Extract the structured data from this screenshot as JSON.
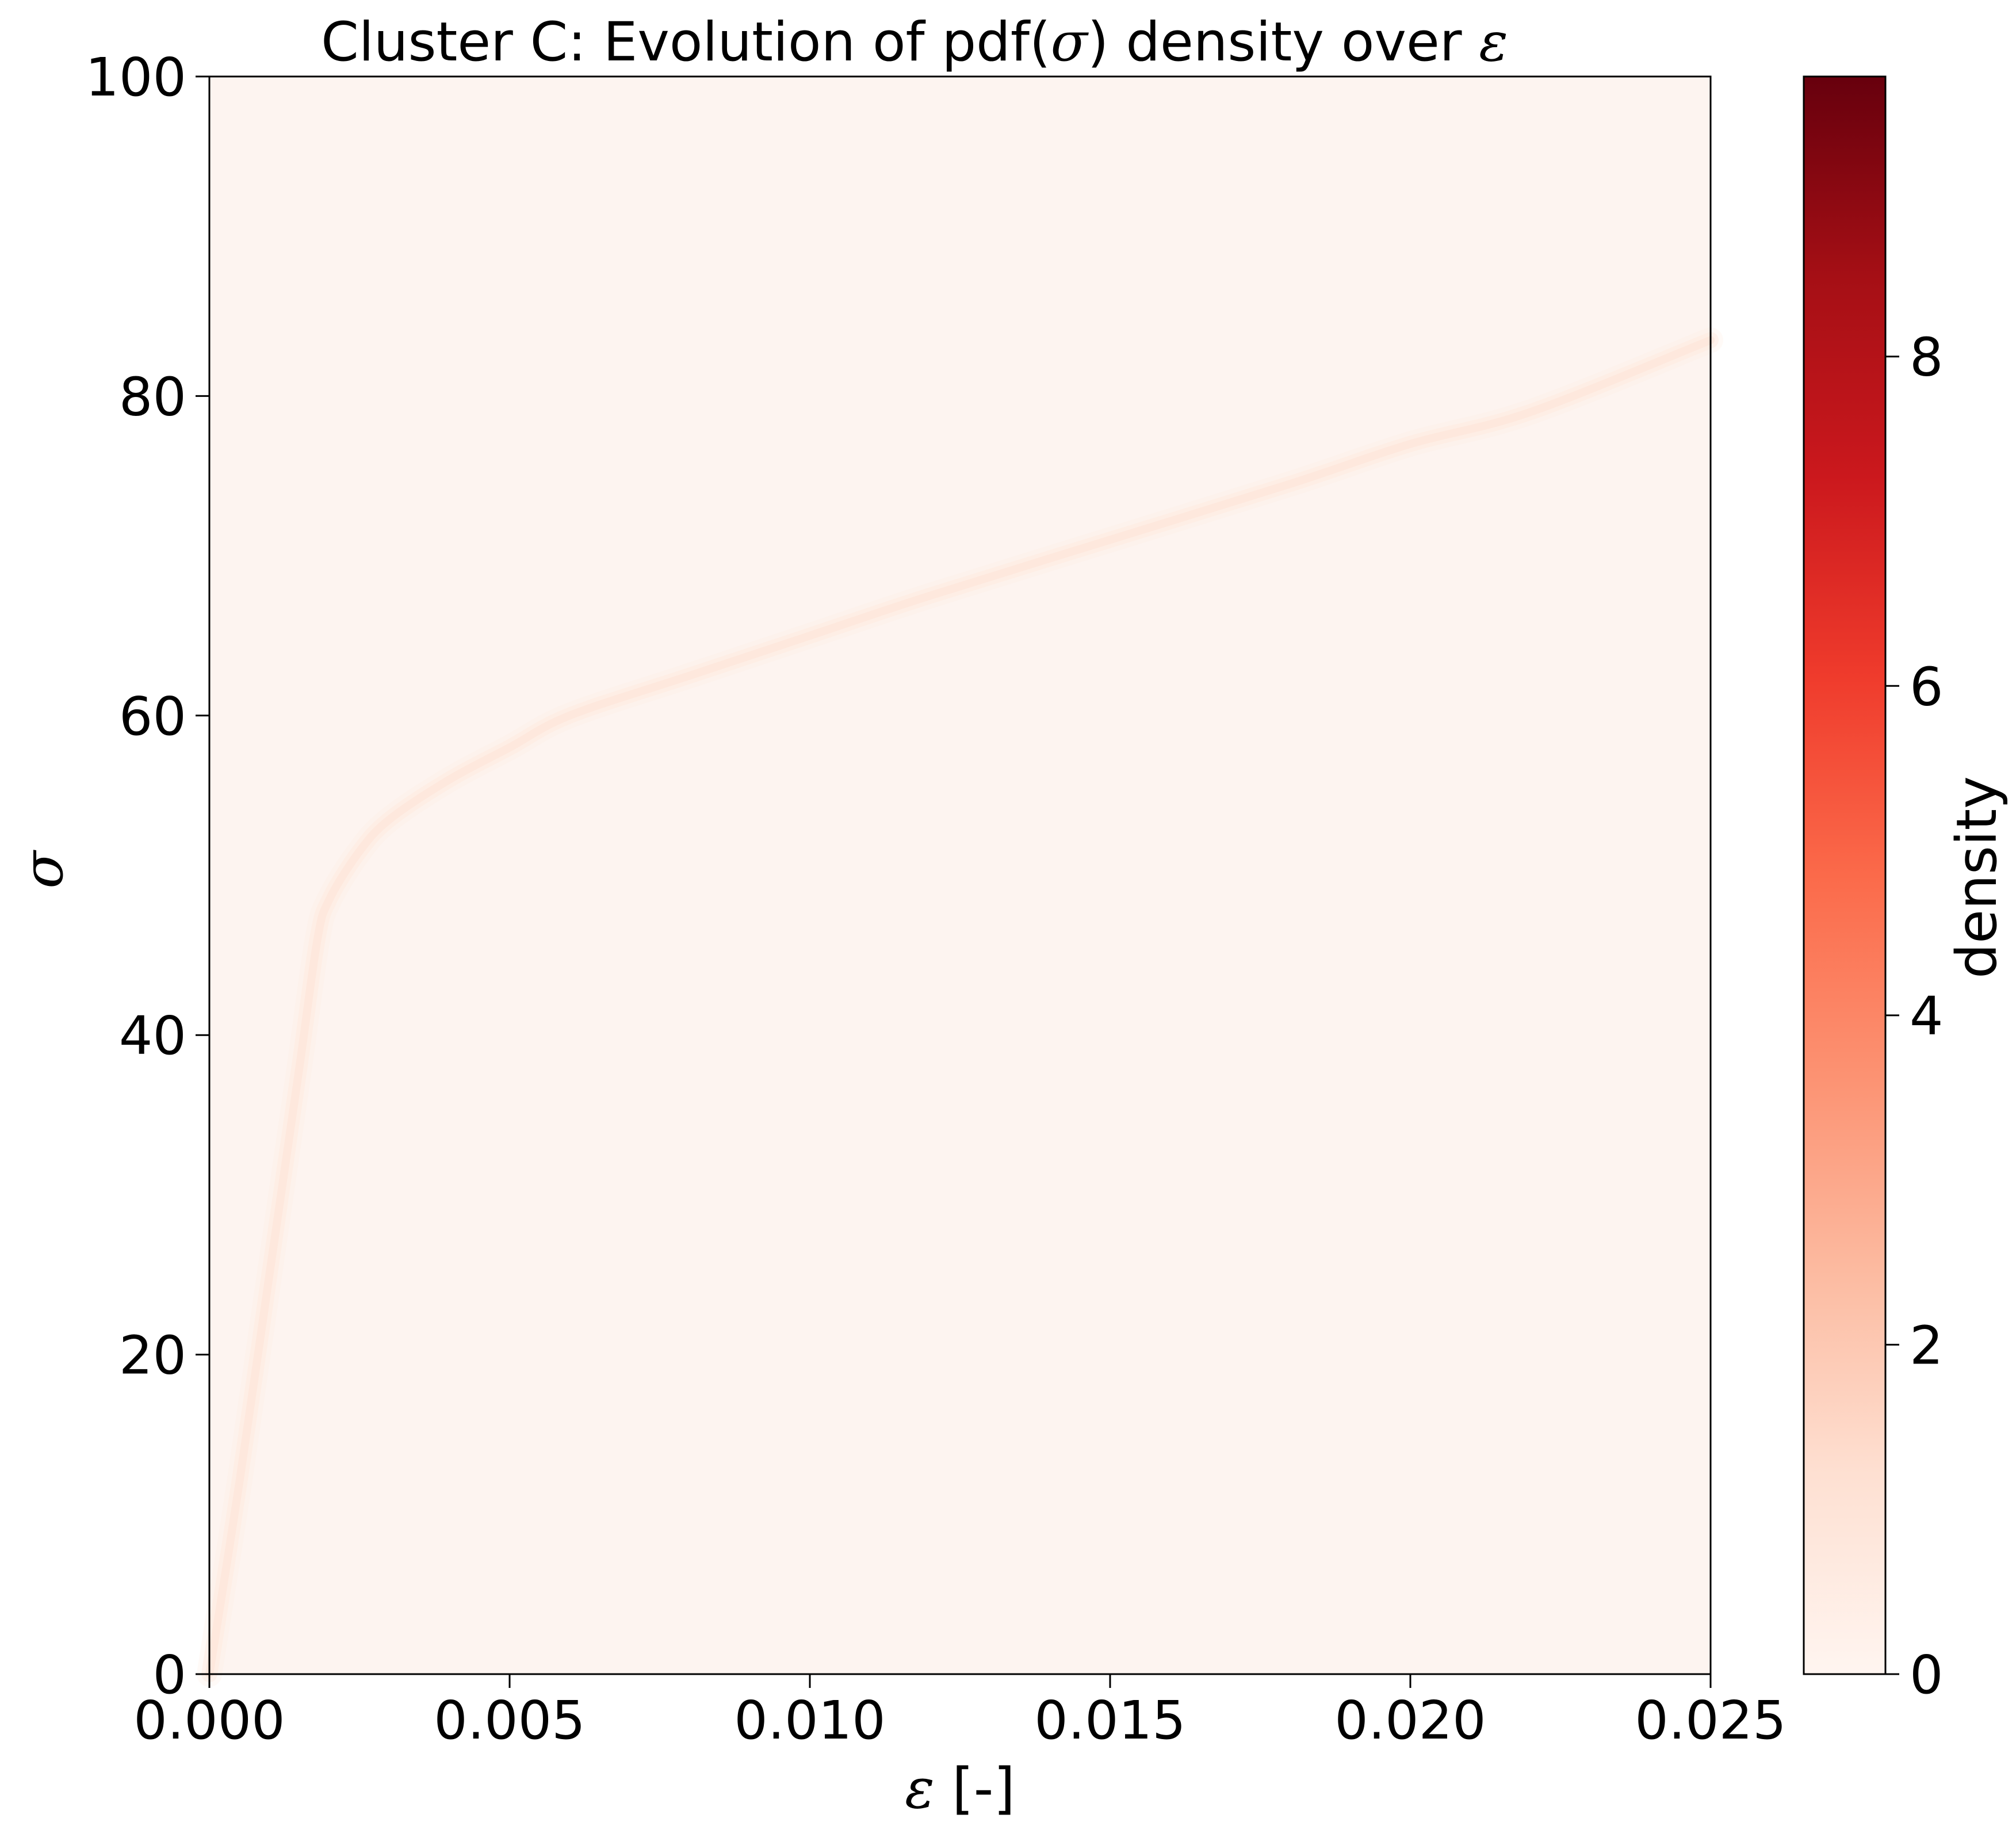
{
  "chart_data": {
    "type": "heatmap",
    "title": {
      "prefix": "Cluster C: Evolution of pdf(",
      "sym_sigma": "σ",
      "middle": ") density over ",
      "sym_eps": "ε"
    },
    "xlabel": {
      "sym": "ε",
      "unit": " [-]"
    },
    "ylabel": "σ",
    "colorbar_label": "density",
    "xlim": [
      0,
      0.025
    ],
    "ylim": [
      0,
      100
    ],
    "clim": [
      0,
      9.7
    ],
    "x_ticks": [
      {
        "value": 0.0,
        "label": "0.000"
      },
      {
        "value": 0.005,
        "label": "0.005"
      },
      {
        "value": 0.01,
        "label": "0.010"
      },
      {
        "value": 0.015,
        "label": "0.015"
      },
      {
        "value": 0.02,
        "label": "0.020"
      },
      {
        "value": 0.025,
        "label": "0.025"
      }
    ],
    "y_ticks": [
      {
        "value": 0,
        "label": "0"
      },
      {
        "value": 20,
        "label": "20"
      },
      {
        "value": 40,
        "label": "40"
      },
      {
        "value": 60,
        "label": "60"
      },
      {
        "value": 80,
        "label": "80"
      },
      {
        "value": 100,
        "label": "100"
      }
    ],
    "colorbar_ticks": [
      {
        "value": 0,
        "label": "0"
      },
      {
        "value": 2,
        "label": "2"
      },
      {
        "value": 4,
        "label": "4"
      },
      {
        "value": 6,
        "label": "6"
      },
      {
        "value": 8,
        "label": "8"
      }
    ],
    "colormap": "Reds",
    "colormap_stops": [
      "#fff5f0",
      "#fee0d2",
      "#fcbba1",
      "#fc9272",
      "#fb6a4a",
      "#ef3b2c",
      "#cb181d",
      "#a50f15",
      "#67000d"
    ],
    "background_color": "#fdf4f0",
    "ridge": {
      "description_type": "density ridge",
      "eps": [
        0.0,
        0.0005,
        0.001,
        0.0015,
        0.0018,
        0.002,
        0.0025,
        0.003,
        0.004,
        0.005,
        0.006,
        0.008,
        0.01,
        0.012,
        0.015,
        0.018,
        0.02,
        0.022,
        0.025
      ],
      "sigma": [
        0,
        12,
        25,
        38,
        46,
        48.5,
        51.5,
        53.5,
        56,
        58,
        60,
        62.5,
        65,
        67.5,
        71,
        74.5,
        77,
        79,
        83.5
      ],
      "peak_density": [
        0.2,
        0.3,
        0.35,
        0.4,
        0.45,
        0.55,
        0.6,
        0.6,
        0.55,
        0.5,
        0.5,
        0.45,
        0.45,
        0.42,
        0.4,
        0.38,
        0.36,
        0.34,
        0.32
      ],
      "spread_sigma": [
        0.3,
        0.4,
        0.5,
        0.6,
        0.6,
        0.7,
        0.8,
        0.9,
        1.0,
        1.1,
        1.2,
        1.3,
        1.4,
        1.5,
        1.6,
        1.7,
        1.8,
        1.9,
        2.0
      ]
    }
  }
}
